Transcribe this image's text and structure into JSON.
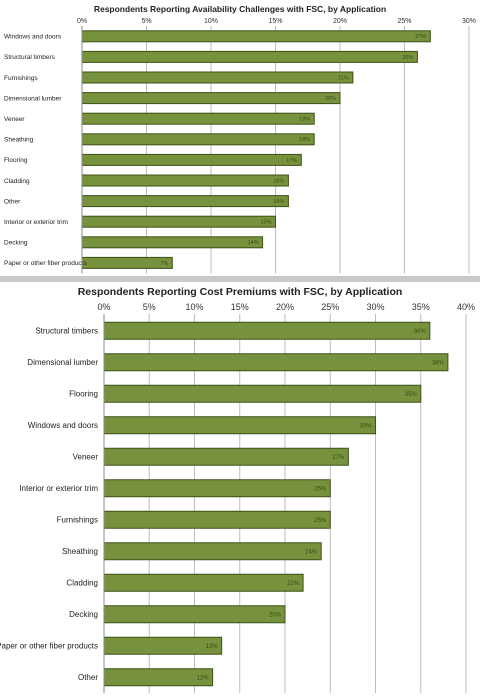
{
  "chart_data": [
    {
      "type": "bar",
      "orientation": "horizontal",
      "title": "Respondents Reporting Availability Challenges with FSC, by Application",
      "categories": [
        "Windows and doors",
        "Structural timbers",
        "Furnishings",
        "Dimensional lumber",
        "Veneer",
        "Sheathing",
        "Flooring",
        "Cladding",
        "Other",
        "Interior or exterior trim",
        "Decking",
        "Paper or other fiber products"
      ],
      "values": [
        27,
        26,
        21,
        20,
        18,
        18,
        17,
        16,
        16,
        15,
        14,
        7
      ],
      "data_labels": [
        "27%",
        "26%",
        "21%",
        "20%",
        "18%",
        "18%",
        "17%",
        "16%",
        "16%",
        "15%",
        "14%",
        "7%"
      ],
      "xlim": [
        0,
        30
      ],
      "ticks": [
        "0%",
        "5%",
        "10%",
        "15%",
        "20%",
        "25%",
        "30%"
      ],
      "tick_values": [
        0,
        5,
        10,
        15,
        20,
        25,
        30
      ],
      "grid": true,
      "bar_color": "#76923c"
    },
    {
      "type": "bar",
      "orientation": "horizontal",
      "title": "Respondents Reporting Cost Premiums with FSC, by Application",
      "categories": [
        "Structural timbers",
        "Dimensional lumber",
        "Flooring",
        "Windows and doors",
        "Veneer",
        "Interior or exterior trim",
        "Furnishings",
        "Sheathing",
        "Cladding",
        "Decking",
        "Paper or other fiber products",
        "Other"
      ],
      "values": [
        36,
        38,
        35,
        30,
        27,
        25,
        25,
        24,
        22,
        20,
        13,
        12
      ],
      "data_labels": [
        "36%",
        "38%",
        "35%",
        "30%",
        "27%",
        "25%",
        "25%",
        "24%",
        "22%",
        "20%",
        "13%",
        "12%"
      ],
      "xlim": [
        0,
        40
      ],
      "ticks": [
        "0%",
        "5%",
        "10%",
        "15%",
        "20%",
        "25%",
        "30%",
        "35%",
        "40%"
      ],
      "tick_values": [
        0,
        5,
        10,
        15,
        20,
        25,
        30,
        35,
        40
      ],
      "grid": true,
      "bar_color": "#76923c"
    }
  ]
}
